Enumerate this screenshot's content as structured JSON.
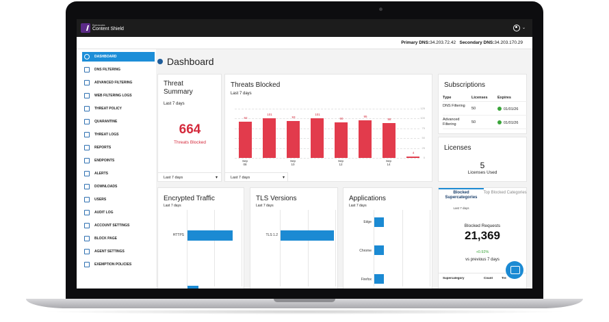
{
  "app": {
    "brand_small": "Barracuda",
    "brand": "Content Shield"
  },
  "dns": {
    "primary_label": "Primary DNS:",
    "primary_value": "34.203.72.42",
    "secondary_label": "Secondary DNS:",
    "secondary_value": "34.203.170.29"
  },
  "sidebar": {
    "items": [
      {
        "label": "DASHBOARD",
        "icon": "pie-chart-icon"
      },
      {
        "label": "DNS FILTERING",
        "icon": "dns-icon"
      },
      {
        "label": "ADVANCED FILTERING",
        "icon": "filter-icon"
      },
      {
        "label": "WEB FILTERING LOGS",
        "icon": "logs-icon"
      },
      {
        "label": "THREAT POLICY",
        "icon": "shield-icon"
      },
      {
        "label": "QUARANTINE",
        "icon": "biohazard-icon"
      },
      {
        "label": "THREAT LOGS",
        "icon": "table-icon"
      },
      {
        "label": "REPORTS",
        "icon": "bar-chart-icon"
      },
      {
        "label": "ENDPOINTS",
        "icon": "endpoints-icon"
      },
      {
        "label": "ALERTS",
        "icon": "bell-icon"
      },
      {
        "label": "DOWNLOADS",
        "icon": "download-icon"
      },
      {
        "label": "USERS",
        "icon": "users-icon"
      },
      {
        "label": "AUDIT LOG",
        "icon": "audit-icon"
      },
      {
        "label": "ACCOUNT SETTINGS",
        "icon": "settings-icon"
      },
      {
        "label": "BLOCK PAGE",
        "icon": "block-page-icon"
      },
      {
        "label": "AGENT SETTINGS",
        "icon": "agent-icon"
      },
      {
        "label": "EXEMPTION POLICIES",
        "icon": "exemption-icon"
      }
    ]
  },
  "main": {
    "title": "Dashboard"
  },
  "threat_summary": {
    "title_line1": "Threat",
    "title_line2": "Summary",
    "period": "Last 7 days",
    "count": "664",
    "count_label": "Threats Blocked",
    "dropdown": "Last 7 days"
  },
  "threats_blocked": {
    "title": "Threats Blocked",
    "period": "Last 7 days",
    "dropdown": "Last 7 days"
  },
  "chart_data": {
    "type": "bar",
    "title": "Threats Blocked",
    "values": [
      92,
      101,
      93,
      101,
      90,
      95,
      88,
      4
    ],
    "data_labels": [
      "92",
      "101",
      "93",
      "101",
      "90",
      "95",
      "88",
      "4"
    ],
    "x_tick_labels": [
      {
        "index": 0,
        "month": "Sep",
        "day": "08"
      },
      {
        "index": 2,
        "month": "Sep",
        "day": "10"
      },
      {
        "index": 4,
        "month": "Sep",
        "day": "12"
      },
      {
        "index": 6,
        "month": "Sep",
        "day": "14"
      }
    ],
    "y_ticks": [
      "125",
      "100",
      "75",
      "50",
      "25",
      "0"
    ],
    "ylim": [
      0,
      125
    ],
    "grid": true
  },
  "subscriptions": {
    "title": "Subscriptions",
    "headers": [
      "Type",
      "Licenses",
      "Expires"
    ],
    "rows": [
      {
        "type": "DNS Filtering",
        "licenses": "50",
        "expires": "01/01/26"
      },
      {
        "type": "Advanced Filtering",
        "licenses": "50",
        "expires": "01/01/26"
      }
    ],
    "status_color": "#3aa53a"
  },
  "licenses": {
    "title": "Licenses",
    "count": "5",
    "label": "Licenses Used"
  },
  "encrypted_traffic": {
    "title": "Encrypted Traffic",
    "period": "Last 7 days",
    "bar_label": "HTTPS"
  },
  "tls_versions": {
    "title": "TLS Versions",
    "period": "Last 7 days",
    "bar_label": "TLS 1.2"
  },
  "applications": {
    "title": "Applications",
    "period": "Last 7 days",
    "bars": [
      "Edge",
      "Chrome",
      "Firefox"
    ]
  },
  "supercategories": {
    "tab_active": "Blocked Supercategories",
    "tab_inactive": "Top Blocked Categories",
    "period": "Last 7 days",
    "requests_label": "Blocked Requests",
    "requests_value": "21,369",
    "change": "+0.92%",
    "change_label": "vs previous 7 days",
    "table_headers": [
      "Supercategory",
      "Count",
      "Tre"
    ]
  },
  "colors": {
    "accent": "#1b8ad3",
    "danger": "#e23b4c",
    "positive": "#3aa53a"
  }
}
